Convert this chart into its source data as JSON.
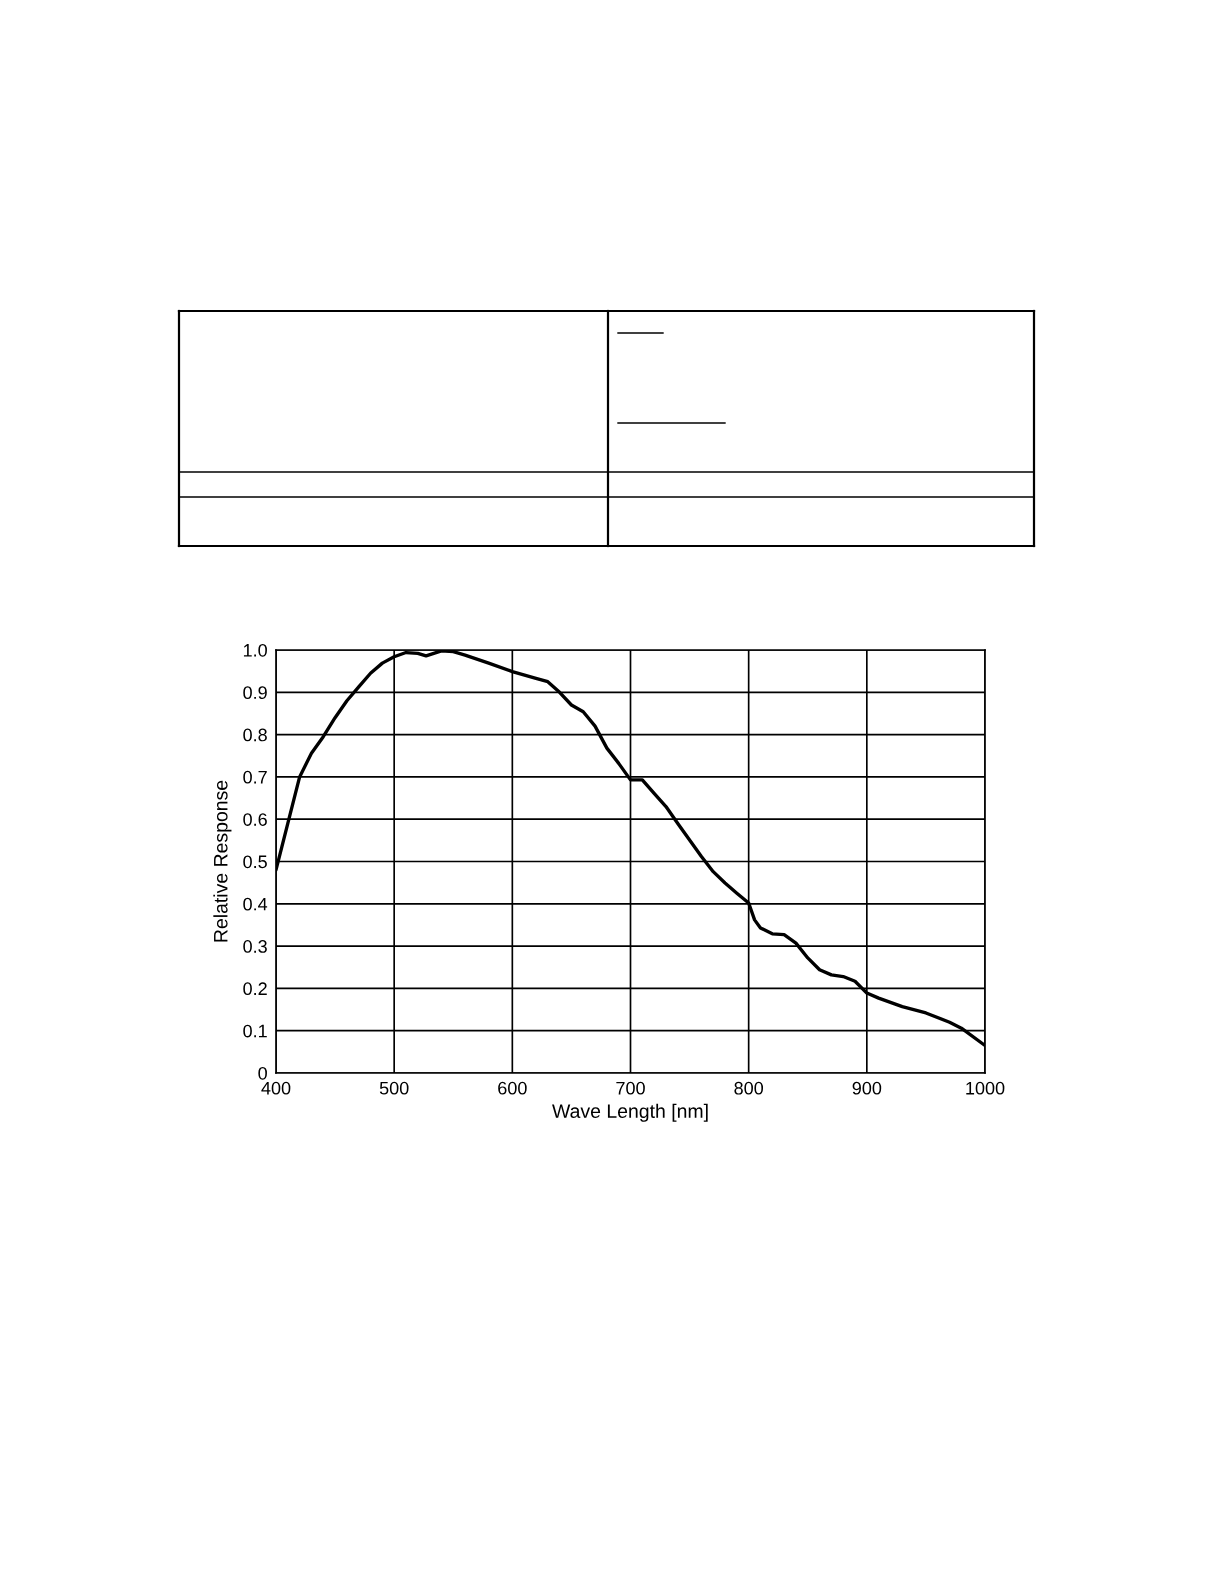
{
  "chart_data": {
    "type": "line",
    "xlabel": "Wave Length [nm]",
    "ylabel": "Relative Response",
    "xlim": [
      400,
      1000
    ],
    "xticks": [
      400,
      500,
      600,
      700,
      800,
      900,
      1000
    ],
    "ylim": [
      0,
      1.0
    ],
    "yticks": [
      0,
      0.1,
      0.2,
      0.3,
      0.4,
      0.5,
      0.6,
      0.7,
      0.8,
      0.9,
      {
        "value": 1.0,
        "label": "1.0"
      }
    ],
    "grid": true,
    "marker": "none",
    "line_style": "solid",
    "series": [
      {
        "color": "#000000",
        "x": [
          400,
          405,
          410,
          420,
          430,
          440,
          450,
          460,
          470,
          480,
          490,
          500,
          510,
          520,
          527,
          540,
          550,
          560,
          580,
          600,
          620,
          630,
          640,
          650,
          660,
          670,
          680,
          690,
          700,
          710,
          720,
          730,
          740,
          750,
          760,
          770,
          780,
          790,
          800,
          805,
          810,
          820,
          830,
          840,
          850,
          860,
          870,
          880,
          890,
          900,
          910,
          930,
          950,
          970,
          980,
          1000
        ],
        "values": [
          0.48,
          0.535,
          0.59,
          0.7,
          0.756,
          0.795,
          0.84,
          0.88,
          0.913,
          0.945,
          0.969,
          0.984,
          0.994,
          0.992,
          0.986,
          0.998,
          0.996,
          0.988,
          0.969,
          0.949,
          0.933,
          0.925,
          0.9,
          0.87,
          0.854,
          0.82,
          0.768,
          0.732,
          0.693,
          0.693,
          0.661,
          0.63,
          0.59,
          0.551,
          0.512,
          0.476,
          0.449,
          0.425,
          0.402,
          0.362,
          0.343,
          0.329,
          0.327,
          0.307,
          0.272,
          0.244,
          0.232,
          0.228,
          0.217,
          0.189,
          0.177,
          0.157,
          0.142,
          0.12,
          0.106,
          0.065
        ]
      }
    ]
  }
}
